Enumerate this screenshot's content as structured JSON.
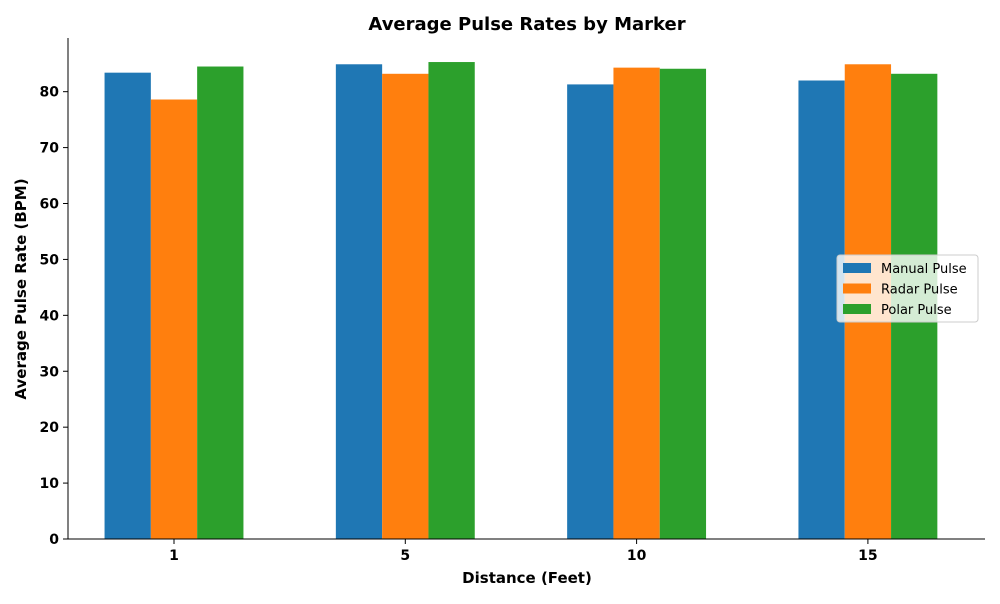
{
  "chart_data": {
    "type": "bar",
    "title": "Average Pulse Rates by Marker",
    "xlabel": "Distance (Feet)",
    "ylabel": "Average Pulse Rate (BPM)",
    "categories": [
      "1",
      "5",
      "10",
      "15"
    ],
    "ylim": [
      0,
      89.6
    ],
    "yticks": [
      0,
      10,
      20,
      30,
      40,
      50,
      60,
      70,
      80
    ],
    "grid": false,
    "legend_position": "center-right",
    "series": [
      {
        "name": "Manual Pulse",
        "color": "#1f77b4",
        "values": [
          83.4,
          84.9,
          81.3,
          82.0
        ]
      },
      {
        "name": "Radar Pulse",
        "color": "#ff7f0e",
        "values": [
          78.6,
          83.2,
          84.3,
          84.9
        ]
      },
      {
        "name": "Polar Pulse",
        "color": "#2ca02c",
        "values": [
          84.5,
          85.3,
          84.1,
          83.2
        ]
      }
    ]
  }
}
